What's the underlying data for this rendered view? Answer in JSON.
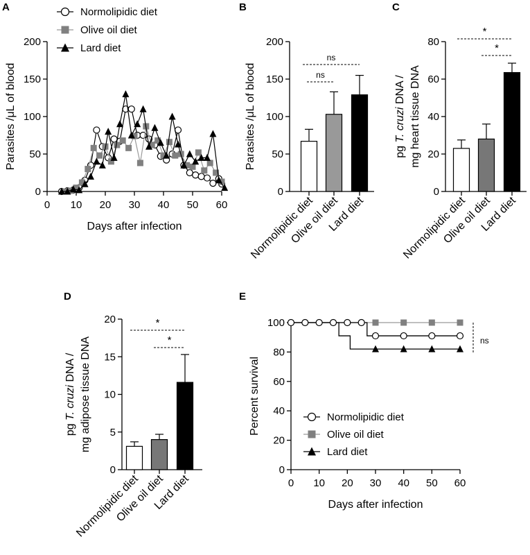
{
  "colors": {
    "normo": "#ffffff",
    "olive": "#808080",
    "lard": "#000000",
    "axis": "#000000"
  },
  "chart_data": [
    {
      "panel": "A",
      "type": "line",
      "xlabel": "Days after infection",
      "ylabel": "Parasites /μL of blood",
      "xlim": [
        0,
        60
      ],
      "ylim": [
        0,
        200
      ],
      "xticks": [
        0,
        10,
        20,
        30,
        40,
        50,
        60
      ],
      "yticks": [
        0,
        50,
        100,
        150,
        200
      ],
      "legend": [
        "Normolipidic diet",
        "Olive oil diet",
        "Lard diet"
      ],
      "series": [
        {
          "name": "Normolipidic diet",
          "marker": "circle",
          "x": [
            5,
            7,
            9,
            11,
            13,
            15,
            17,
            19,
            21,
            23,
            25,
            27,
            29,
            31,
            33,
            35,
            37,
            39,
            41,
            43,
            45,
            47,
            49,
            51,
            53,
            55,
            57,
            59,
            60
          ],
          "y": [
            0,
            1,
            2,
            5,
            15,
            35,
            82,
            60,
            45,
            70,
            67,
            110,
            110,
            75,
            75,
            70,
            62,
            47,
            42,
            50,
            82,
            35,
            25,
            22,
            20,
            18,
            11,
            17,
            10
          ]
        },
        {
          "name": "Olive oil diet",
          "marker": "square",
          "x": [
            6,
            8,
            10,
            12,
            14,
            16,
            18,
            20,
            22,
            24,
            26,
            28,
            30,
            32,
            34,
            36,
            38,
            40,
            42,
            44,
            46,
            48,
            50,
            52,
            54,
            56,
            58,
            60
          ],
          "y": [
            0,
            1,
            5,
            12,
            30,
            58,
            48,
            60,
            40,
            62,
            68,
            58,
            74,
            38,
            87,
            62,
            68,
            48,
            66,
            48,
            50,
            35,
            33,
            52,
            28,
            38,
            25,
            13
          ]
        },
        {
          "name": "Lard diet",
          "marker": "triangle",
          "x": [
            5,
            7,
            9,
            11,
            13,
            15,
            17,
            19,
            21,
            23,
            25,
            27,
            29,
            31,
            33,
            35,
            37,
            39,
            41,
            43,
            45,
            47,
            49,
            51,
            53,
            55,
            57,
            59,
            61
          ],
          "y": [
            0,
            0,
            3,
            2,
            10,
            20,
            40,
            35,
            80,
            45,
            90,
            130,
            75,
            90,
            110,
            60,
            85,
            65,
            48,
            100,
            63,
            35,
            50,
            40,
            45,
            45,
            77,
            15,
            5
          ]
        }
      ]
    },
    {
      "panel": "B",
      "type": "bar",
      "ylabel": "Parasites /μL of blood",
      "ylim": [
        0,
        200
      ],
      "yticks": [
        0,
        50,
        100,
        150,
        200
      ],
      "categories": [
        "Normolipidic diet",
        "Olive oil diet",
        "Lard diet"
      ],
      "values": [
        67,
        103,
        129
      ],
      "errors": [
        16,
        30,
        26
      ],
      "significance": [
        {
          "label": "ns",
          "from": 0,
          "to": 1
        },
        {
          "label": "ns",
          "from": 0,
          "to": 2
        }
      ]
    },
    {
      "panel": "C",
      "type": "bar",
      "ylabel_line1_pre": "pg ",
      "ylabel_line1_italic": "T. cruzi",
      "ylabel_line1_post": " DNA /",
      "ylabel_line2": "mg heart tissue DNA",
      "ylim": [
        0,
        80
      ],
      "yticks": [
        0,
        20,
        40,
        60,
        80
      ],
      "categories": [
        "Normolipidic diet",
        "Olive oil diet",
        "Lard diet"
      ],
      "values": [
        23,
        28,
        63.5
      ],
      "errors": [
        4.5,
        8,
        5
      ],
      "significance": [
        {
          "label": "*",
          "from": 0,
          "to": 2
        },
        {
          "label": "*",
          "from": 1,
          "to": 2
        }
      ]
    },
    {
      "panel": "D",
      "type": "bar",
      "ylabel_line1_pre": "pg ",
      "ylabel_line1_italic": "T. cruzi",
      "ylabel_line1_post": " DNA /",
      "ylabel_line2": "mg adipose tissue DNA",
      "ylim": [
        0,
        20
      ],
      "yticks": [
        0,
        5,
        10,
        15,
        20
      ],
      "categories": [
        "Normolipidic diet",
        "Olive oil diet",
        "Lard diet"
      ],
      "values": [
        3.1,
        4.0,
        11.6
      ],
      "errors": [
        0.6,
        0.7,
        3.7
      ],
      "significance": [
        {
          "label": "*",
          "from": 0,
          "to": 2
        },
        {
          "label": "*",
          "from": 1,
          "to": 2
        }
      ]
    },
    {
      "panel": "E",
      "type": "line",
      "xlabel": "Days after infection",
      "ylabel": "Percent survival",
      "xlim": [
        0,
        60
      ],
      "ylim": [
        0,
        100
      ],
      "xticks": [
        0,
        10,
        20,
        30,
        40,
        50,
        60
      ],
      "yticks": [
        0,
        20,
        40,
        60,
        80,
        100
      ],
      "legend": [
        "Normolipidic diet",
        "Olive oil diet",
        "Lard diet"
      ],
      "significance_label": "ns",
      "series": [
        {
          "name": "Normolipidic diet",
          "marker": "circle",
          "steps": [
            [
              0,
              100
            ],
            [
              27,
              100
            ],
            [
              27,
              91
            ],
            [
              60,
              91
            ]
          ],
          "markers_x": [
            0,
            5,
            10,
            15,
            20,
            25,
            30,
            40,
            50,
            60
          ],
          "markers_y": [
            100,
            100,
            100,
            100,
            100,
            100,
            91,
            91,
            91,
            91
          ]
        },
        {
          "name": "Olive oil diet",
          "marker": "square",
          "steps": [
            [
              0,
              100
            ],
            [
              60,
              100
            ]
          ],
          "markers_x": [
            30,
            40,
            50,
            60
          ],
          "markers_y": [
            100,
            100,
            100,
            100
          ]
        },
        {
          "name": "Lard diet",
          "marker": "triangle",
          "steps": [
            [
              0,
              100
            ],
            [
              17,
              100
            ],
            [
              17,
              91
            ],
            [
              21,
              91
            ],
            [
              21,
              82
            ],
            [
              60,
              82
            ]
          ],
          "markers_x": [
            30,
            40,
            50,
            60
          ],
          "markers_y": [
            82,
            82,
            82,
            82
          ]
        }
      ]
    }
  ]
}
